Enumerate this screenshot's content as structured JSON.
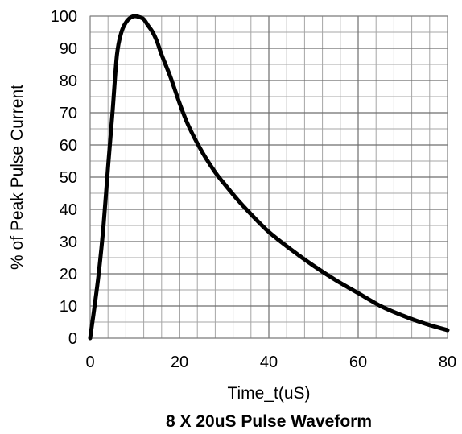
{
  "chart_data": {
    "type": "line",
    "title": "8 X 20uS Pulse Waveform",
    "xlabel": "Time_t(uS)",
    "ylabel": "% of Peak Pulse Current",
    "xlim": [
      0,
      80
    ],
    "ylim": [
      0,
      100
    ],
    "x_ticks": [
      "0",
      "20",
      "40",
      "60",
      "80"
    ],
    "y_ticks": [
      "0",
      "10",
      "20",
      "30",
      "40",
      "50",
      "60",
      "70",
      "80",
      "90",
      "100"
    ],
    "grid": true,
    "series": [
      {
        "color": "#000000",
        "x": [
          0,
          1,
          2,
          3,
          4,
          5,
          6,
          7,
          8,
          9,
          10,
          11,
          12,
          13,
          14,
          15,
          16,
          18,
          20,
          22,
          25,
          28,
          30,
          33,
          36,
          40,
          45,
          50,
          55,
          60,
          65,
          70,
          75,
          80
        ],
        "y": [
          0,
          10,
          21,
          35,
          53,
          70,
          88,
          95,
          98,
          99.5,
          100,
          99.7,
          99,
          97,
          95,
          92,
          88,
          81,
          73,
          66,
          58,
          51.5,
          48,
          43,
          38.5,
          33,
          27.5,
          22.5,
          18,
          14,
          10,
          7,
          4.5,
          2.5
        ]
      }
    ]
  }
}
